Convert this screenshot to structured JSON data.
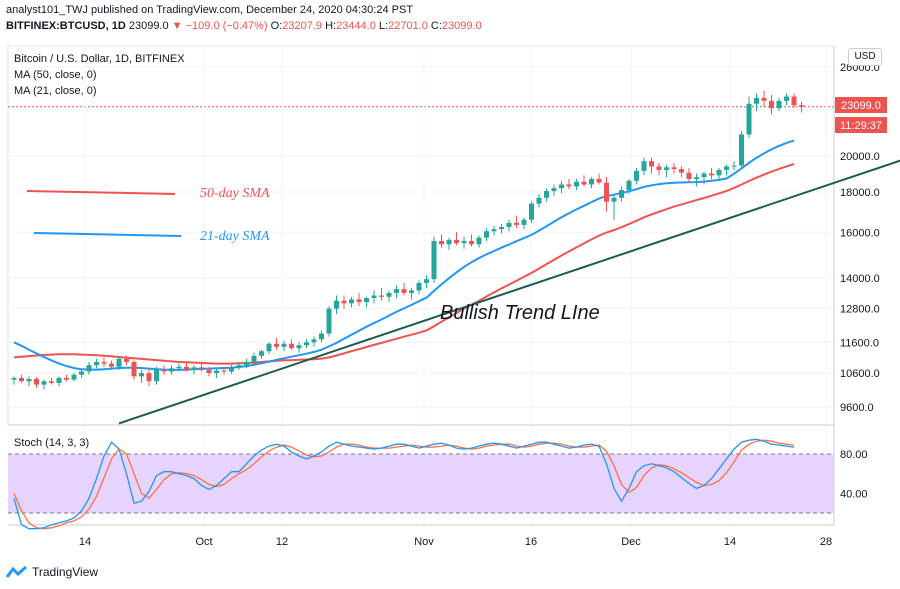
{
  "header": {
    "line1": "analyst101_TWJ published on TradingView.com, December 24, 2020 04:30:24 PST",
    "symbol": "BITFINEX:BTCUSD, 1D",
    "last": "23099.0",
    "change": "▼ −109.0 (−0.47%)",
    "o_label": "O:",
    "o": "23207.9",
    "h_label": "H:",
    "h": "23444.0",
    "l_label": "L:",
    "l": "22701.0",
    "c_label": "C:",
    "c": "23099.0"
  },
  "legend": {
    "pair": "Bitcoin / U.S. Dollar, 1D, BITFINEX",
    "ma50": "MA (50, close, 0)",
    "ma21": "MA (21, close, 0)",
    "stoch": "Stoch (14, 3, 3)"
  },
  "annotations": {
    "sma50": "50-day SMA",
    "sma21": "21-day SMA",
    "trendline": "Bullish Trend LIne"
  },
  "price_axis": {
    "currency": "USD",
    "last_price": "23099.0",
    "countdown": "11:29:37"
  },
  "footer": {
    "brand": "TradingView"
  },
  "colors": {
    "up": "#26a69a",
    "down": "#ef5350",
    "ma50": "#ef5350",
    "ma21": "#2196f3",
    "trend": "#1e5b4f",
    "stoch_k": "#2196f3",
    "stoch_d": "#ff7043",
    "stoch_band": "#e1c8ff"
  },
  "chart_data": {
    "type": "candlestick",
    "y_ticks": [
      9600,
      10600,
      11600,
      12800,
      14000,
      16000,
      18000,
      20000,
      26000
    ],
    "x_ticks": [
      "14",
      "Oct",
      "12",
      "Nov",
      "16",
      "Dec",
      "14",
      "28"
    ],
    "candles": [
      [
        10400,
        10500,
        10250,
        10450
      ],
      [
        10450,
        10550,
        10300,
        10350
      ],
      [
        10350,
        10500,
        10200,
        10420
      ],
      [
        10420,
        10480,
        10150,
        10250
      ],
      [
        10250,
        10400,
        10100,
        10350
      ],
      [
        10350,
        10450,
        10250,
        10300
      ],
      [
        10300,
        10500,
        10200,
        10450
      ],
      [
        10450,
        10550,
        10350,
        10400
      ],
      [
        10400,
        10600,
        10350,
        10550
      ],
      [
        10550,
        10700,
        10450,
        10650
      ],
      [
        10650,
        10950,
        10550,
        10850
      ],
      [
        10850,
        11050,
        10750,
        10950
      ],
      [
        10950,
        11100,
        10800,
        10900
      ],
      [
        10900,
        11000,
        10700,
        10800
      ],
      [
        10800,
        11150,
        10700,
        11050
      ],
      [
        11050,
        11150,
        10850,
        10950
      ],
      [
        10950,
        11000,
        10400,
        10500
      ],
      [
        10500,
        10700,
        10300,
        10600
      ],
      [
        10600,
        10750,
        10200,
        10350
      ],
      [
        10350,
        10800,
        10250,
        10700
      ],
      [
        10700,
        10850,
        10550,
        10650
      ],
      [
        10650,
        10850,
        10550,
        10750
      ],
      [
        10750,
        10900,
        10650,
        10800
      ],
      [
        10800,
        10950,
        10650,
        10700
      ],
      [
        10700,
        10850,
        10550,
        10780
      ],
      [
        10780,
        10950,
        10650,
        10700
      ],
      [
        10700,
        10800,
        10500,
        10600
      ],
      [
        10600,
        10750,
        10450,
        10680
      ],
      [
        10680,
        10800,
        10550,
        10650
      ],
      [
        10650,
        10850,
        10580,
        10780
      ],
      [
        10780,
        10950,
        10700,
        10850
      ],
      [
        10850,
        11050,
        10750,
        10950
      ],
      [
        10950,
        11250,
        10850,
        11150
      ],
      [
        11150,
        11350,
        11050,
        11300
      ],
      [
        11300,
        11600,
        11200,
        11550
      ],
      [
        11550,
        11750,
        11350,
        11450
      ],
      [
        11450,
        11650,
        11300,
        11550
      ],
      [
        11550,
        11700,
        11350,
        11400
      ],
      [
        11400,
        11600,
        11250,
        11500
      ],
      [
        11500,
        11700,
        11400,
        11600
      ],
      [
        11600,
        11800,
        11450,
        11700
      ],
      [
        11700,
        12000,
        11600,
        11900
      ],
      [
        11900,
        12900,
        11800,
        12800
      ],
      [
        12800,
        13300,
        12600,
        13100
      ],
      [
        13100,
        13300,
        12800,
        13000
      ],
      [
        13000,
        13250,
        12850,
        13150
      ],
      [
        13150,
        13400,
        12900,
        13050
      ],
      [
        13050,
        13250,
        12850,
        13200
      ],
      [
        13200,
        13500,
        13000,
        13300
      ],
      [
        13300,
        13600,
        13100,
        13250
      ],
      [
        13250,
        13500,
        13050,
        13400
      ],
      [
        13400,
        13700,
        13200,
        13550
      ],
      [
        13550,
        13800,
        13300,
        13400
      ],
      [
        13400,
        13600,
        13150,
        13500
      ],
      [
        13500,
        13900,
        13350,
        13800
      ],
      [
        13800,
        14100,
        13600,
        13950
      ],
      [
        13950,
        15800,
        13800,
        15600
      ],
      [
        15600,
        15900,
        15300,
        15450
      ],
      [
        15450,
        15750,
        15200,
        15650
      ],
      [
        15650,
        16000,
        15400,
        15500
      ],
      [
        15500,
        15800,
        15250,
        15600
      ],
      [
        15600,
        15900,
        15350,
        15450
      ],
      [
        15450,
        15850,
        15300,
        15750
      ],
      [
        15750,
        16200,
        15600,
        16050
      ],
      [
        16050,
        16300,
        15850,
        16150
      ],
      [
        16150,
        16400,
        15950,
        16250
      ],
      [
        16250,
        16600,
        16050,
        16450
      ],
      [
        16450,
        16800,
        16200,
        16350
      ],
      [
        16350,
        16700,
        16150,
        16600
      ],
      [
        16600,
        17500,
        16450,
        17400
      ],
      [
        17400,
        17900,
        17200,
        17700
      ],
      [
        17700,
        18200,
        17500,
        18050
      ],
      [
        18050,
        18400,
        17800,
        18200
      ],
      [
        18200,
        18600,
        17950,
        18400
      ],
      [
        18400,
        18700,
        18150,
        18300
      ],
      [
        18300,
        18700,
        18100,
        18550
      ],
      [
        18550,
        18900,
        18300,
        18400
      ],
      [
        18400,
        18800,
        18200,
        18700
      ],
      [
        18700,
        19000,
        18400,
        18500
      ],
      [
        18500,
        18800,
        17000,
        17500
      ],
      [
        17500,
        17900,
        16600,
        17700
      ],
      [
        17700,
        18300,
        17500,
        18100
      ],
      [
        18100,
        18700,
        17900,
        18600
      ],
      [
        18600,
        19300,
        18400,
        19150
      ],
      [
        19150,
        19900,
        18900,
        19700
      ],
      [
        19700,
        19900,
        19000,
        19400
      ],
      [
        19400,
        19600,
        18900,
        19200
      ],
      [
        19200,
        19500,
        18800,
        19350
      ],
      [
        19350,
        19600,
        19000,
        19250
      ],
      [
        19250,
        19400,
        18800,
        19050
      ],
      [
        19050,
        19300,
        18500,
        18700
      ],
      [
        18700,
        19000,
        18300,
        18800
      ],
      [
        18800,
        19100,
        18400,
        19000
      ],
      [
        19000,
        19300,
        18700,
        18900
      ],
      [
        18900,
        19300,
        18600,
        19200
      ],
      [
        19200,
        19500,
        18900,
        19400
      ],
      [
        19400,
        19700,
        19200,
        19450
      ],
      [
        19450,
        21500,
        19300,
        21300
      ],
      [
        21300,
        23800,
        21100,
        23300
      ],
      [
        23300,
        24000,
        22800,
        23700
      ],
      [
        23700,
        24200,
        23100,
        23500
      ],
      [
        23500,
        23900,
        22600,
        23000
      ],
      [
        23000,
        23700,
        22800,
        23500
      ],
      [
        23500,
        24000,
        23200,
        23800
      ],
      [
        23800,
        24000,
        23000,
        23200
      ],
      [
        23207.9,
        23444.0,
        22701.0,
        23099.0
      ]
    ],
    "ma50": [
      11100,
      11120,
      11140,
      11160,
      11180,
      11190,
      11200,
      11200,
      11200,
      11190,
      11180,
      11170,
      11150,
      11130,
      11110,
      11090,
      11070,
      11050,
      11030,
      11010,
      10990,
      10970,
      10950,
      10940,
      10930,
      10920,
      10910,
      10900,
      10900,
      10900,
      10910,
      10920,
      10930,
      10950,
      10970,
      10990,
      11000,
      11010,
      11020,
      11030,
      11040,
      11060,
      11100,
      11160,
      11230,
      11300,
      11370,
      11440,
      11510,
      11580,
      11650,
      11720,
      11790,
      11860,
      11930,
      12010,
      12160,
      12320,
      12480,
      12640,
      12800,
      12950,
      13100,
      13260,
      13420,
      13580,
      13730,
      13890,
      14050,
      14210,
      14390,
      14580,
      14760,
      14950,
      15130,
      15310,
      15490,
      15670,
      15840,
      15990,
      16110,
      16240,
      16390,
      16550,
      16720,
      16860,
      16990,
      17120,
      17250,
      17360,
      17470,
      17580,
      17690,
      17810,
      17930,
      18060,
      18220,
      18400,
      18590,
      18770,
      18940,
      19100,
      19260,
      19400,
      19540
    ],
    "ma21": [
      11600,
      11480,
      11350,
      11230,
      11110,
      11000,
      10900,
      10820,
      10760,
      10720,
      10710,
      10710,
      10720,
      10740,
      10760,
      10770,
      10770,
      10760,
      10740,
      10720,
      10710,
      10700,
      10700,
      10710,
      10720,
      10730,
      10740,
      10750,
      10760,
      10770,
      10790,
      10820,
      10860,
      10910,
      10960,
      11020,
      11070,
      11120,
      11170,
      11220,
      11280,
      11350,
      11460,
      11580,
      11720,
      11860,
      12000,
      12140,
      12270,
      12400,
      12540,
      12680,
      12810,
      12940,
      13080,
      13220,
      13480,
      13740,
      13990,
      14230,
      14460,
      14660,
      14840,
      15000,
      15150,
      15300,
      15440,
      15590,
      15730,
      15880,
      16080,
      16290,
      16510,
      16720,
      16920,
      17110,
      17290,
      17480,
      17660,
      17780,
      17860,
      17950,
      18040,
      18150,
      18270,
      18360,
      18420,
      18470,
      18500,
      18510,
      18520,
      18530,
      18560,
      18600,
      18650,
      18720,
      18990,
      19290,
      19600,
      19900,
      20150,
      20390,
      20600,
      20780,
      20920
    ],
    "trend_line": {
      "start": {
        "day": 14,
        "price": 9150
      },
      "end": {
        "day": 120,
        "price": 20000
      }
    },
    "stoch_levels": [
      80,
      20
    ],
    "stoch_ticks": [
      80,
      40
    ],
    "stoch_k": [
      35,
      8,
      4,
      4,
      5,
      8,
      10,
      12,
      15,
      22,
      35,
      55,
      78,
      92,
      85,
      60,
      30,
      32,
      42,
      58,
      62,
      62,
      60,
      58,
      55,
      48,
      44,
      48,
      55,
      62,
      62,
      70,
      78,
      84,
      88,
      90,
      88,
      82,
      78,
      75,
      78,
      82,
      88,
      92,
      90,
      88,
      87,
      86,
      85,
      86,
      88,
      90,
      90,
      88,
      86,
      88,
      90,
      91,
      89,
      86,
      85,
      86,
      88,
      90,
      91,
      90,
      88,
      86,
      88,
      90,
      92,
      92,
      90,
      88,
      86,
      87,
      89,
      90,
      88,
      70,
      45,
      32,
      45,
      62,
      68,
      70,
      68,
      66,
      62,
      56,
      50,
      45,
      48,
      55,
      65,
      75,
      85,
      92,
      94,
      95,
      93,
      90,
      89,
      88,
      87
    ],
    "stoch_d": [
      40,
      22,
      10,
      5,
      4,
      5,
      7,
      10,
      12,
      16,
      24,
      37,
      56,
      75,
      85,
      80,
      60,
      40,
      35,
      44,
      54,
      60,
      61,
      60,
      58,
      54,
      49,
      47,
      49,
      55,
      60,
      64,
      70,
      77,
      83,
      87,
      89,
      87,
      83,
      79,
      77,
      78,
      82,
      87,
      90,
      90,
      89,
      87,
      86,
      86,
      86,
      87,
      88,
      89,
      88,
      87,
      87,
      88,
      89,
      88,
      86,
      85,
      86,
      88,
      89,
      90,
      90,
      88,
      87,
      88,
      90,
      91,
      91,
      90,
      88,
      87,
      87,
      88,
      89,
      83,
      68,
      49,
      41,
      46,
      58,
      66,
      69,
      68,
      65,
      61,
      56,
      51,
      48,
      49,
      53,
      61,
      72,
      84,
      90,
      93,
      94,
      93,
      91,
      90,
      89
    ]
  }
}
